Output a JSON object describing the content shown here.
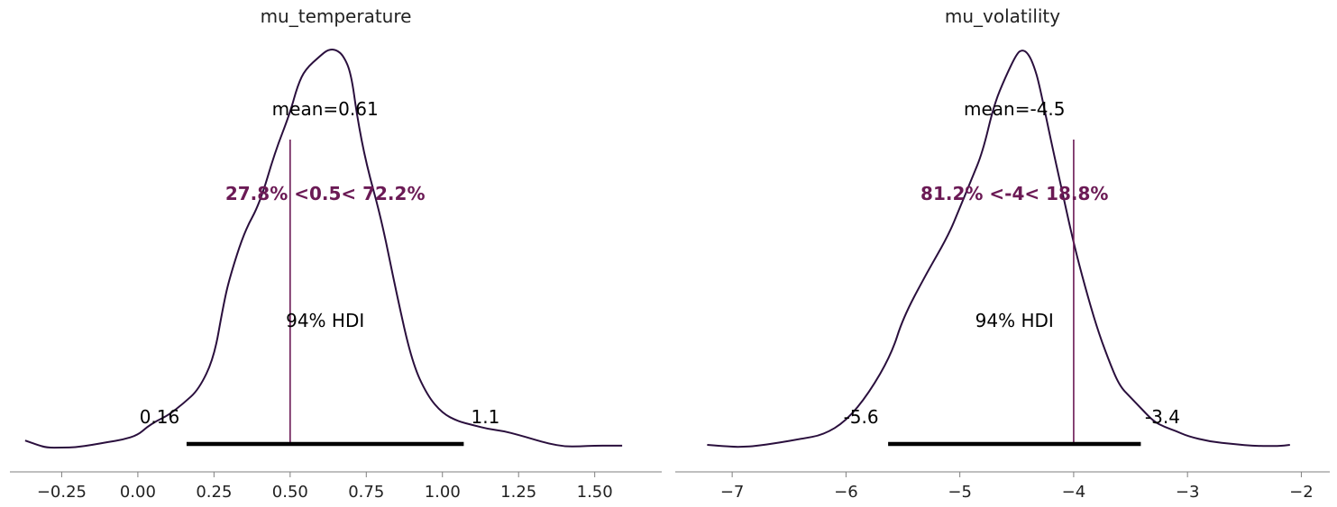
{
  "colors": {
    "kde": "#2a0f3d",
    "reference": "#6b1a55",
    "hdi": "#000000",
    "axis": "#7f7f7f"
  },
  "chart_data": [
    {
      "type": "line",
      "title": "mu_temperature",
      "xlabel": "",
      "ylabel": "",
      "xlim": [
        -0.42,
        1.72
      ],
      "ylim": [
        0,
        1.0
      ],
      "grid": false,
      "x_ticks": [
        -0.25,
        0.0,
        0.25,
        0.5,
        0.75,
        1.0,
        1.25,
        1.5
      ],
      "x_tick_labels": [
        "−0.25",
        "0.00",
        "0.25",
        "0.50",
        "0.75",
        "1.00",
        "1.25",
        "1.50"
      ],
      "series": [
        {
          "x": [
            -0.37,
            -0.33,
            -0.3,
            -0.25,
            -0.2,
            -0.15,
            -0.1,
            -0.05,
            0.0,
            0.03,
            0.06,
            0.1,
            0.15,
            0.2,
            0.25,
            0.28,
            0.3,
            0.35,
            0.4,
            0.45,
            0.5,
            0.525,
            0.55,
            0.6,
            0.625,
            0.65,
            0.675,
            0.7,
            0.72,
            0.75,
            0.8,
            0.85,
            0.9,
            0.95,
            1.0,
            1.05,
            1.1,
            1.15,
            1.2,
            1.25,
            1.3,
            1.35,
            1.4,
            1.45,
            1.5,
            1.55,
            1.59
          ],
          "y": [
            0.011,
            0.0,
            -0.007,
            -0.007,
            -0.006,
            0.0,
            0.007,
            0.013,
            0.025,
            0.045,
            0.06,
            0.075,
            0.105,
            0.14,
            0.22,
            0.35,
            0.42,
            0.54,
            0.61,
            0.74,
            0.84,
            0.91,
            0.95,
            0.985,
            1.0,
            1.0,
            0.985,
            0.94,
            0.83,
            0.71,
            0.57,
            0.38,
            0.21,
            0.125,
            0.08,
            0.06,
            0.05,
            0.04,
            0.035,
            0.025,
            0.014,
            0.003,
            -0.004,
            -0.004,
            -0.002,
            -0.002,
            -0.002
          ]
        }
      ],
      "mean_label": "mean=0.61",
      "ref_value": 0.5,
      "ref_label": "27.8% <0.5< 72.2%",
      "hdi": [
        0.16,
        1.07
      ],
      "hdi_prob_label": "94% HDI",
      "hdi_low_label": "0.16",
      "hdi_high_label": "1.1"
    },
    {
      "type": "line",
      "title": "mu_volatility",
      "xlabel": "",
      "ylabel": "",
      "xlim": [
        -7.5,
        -1.75
      ],
      "ylim": [
        0,
        1.0
      ],
      "grid": false,
      "x_ticks": [
        -7,
        -6,
        -5,
        -4,
        -3,
        -2
      ],
      "x_tick_labels": [
        "−7",
        "−6",
        "−5",
        "−4",
        "−3",
        "−2"
      ],
      "series": [
        {
          "x": [
            -7.22,
            -7.0,
            -6.9,
            -6.8,
            -6.6,
            -6.4,
            -6.2,
            -6.0,
            -5.8,
            -5.6,
            -5.5,
            -5.3,
            -5.1,
            -5.0,
            -4.9,
            -4.8,
            -4.7,
            -4.6,
            -4.5,
            -4.45,
            -4.4,
            -4.35,
            -4.3,
            -4.2,
            -4.1,
            -4.0,
            -3.9,
            -3.8,
            -3.7,
            -3.6,
            -3.5,
            -3.4,
            -3.3,
            -3.2,
            -3.1,
            -3.0,
            -2.8,
            -2.6,
            -2.4,
            -2.2,
            -2.1
          ],
          "y": [
            0.0,
            -0.005,
            -0.005,
            -0.003,
            0.005,
            0.015,
            0.025,
            0.06,
            0.13,
            0.23,
            0.32,
            0.43,
            0.53,
            0.6,
            0.67,
            0.74,
            0.86,
            0.93,
            0.99,
            1.0,
            0.99,
            0.96,
            0.91,
            0.77,
            0.64,
            0.51,
            0.4,
            0.3,
            0.22,
            0.15,
            0.12,
            0.09,
            0.06,
            0.045,
            0.035,
            0.022,
            0.008,
            0.002,
            -0.003,
            -0.003,
            0.0
          ]
        }
      ],
      "mean_label": "mean=-4.5",
      "ref_value": -4,
      "ref_label": "81.2% <-4< 18.8%",
      "hdi": [
        -5.63,
        -3.41
      ],
      "hdi_prob_label": "94% HDI",
      "hdi_low_label": "-5.6",
      "hdi_high_label": "-3.4"
    }
  ]
}
